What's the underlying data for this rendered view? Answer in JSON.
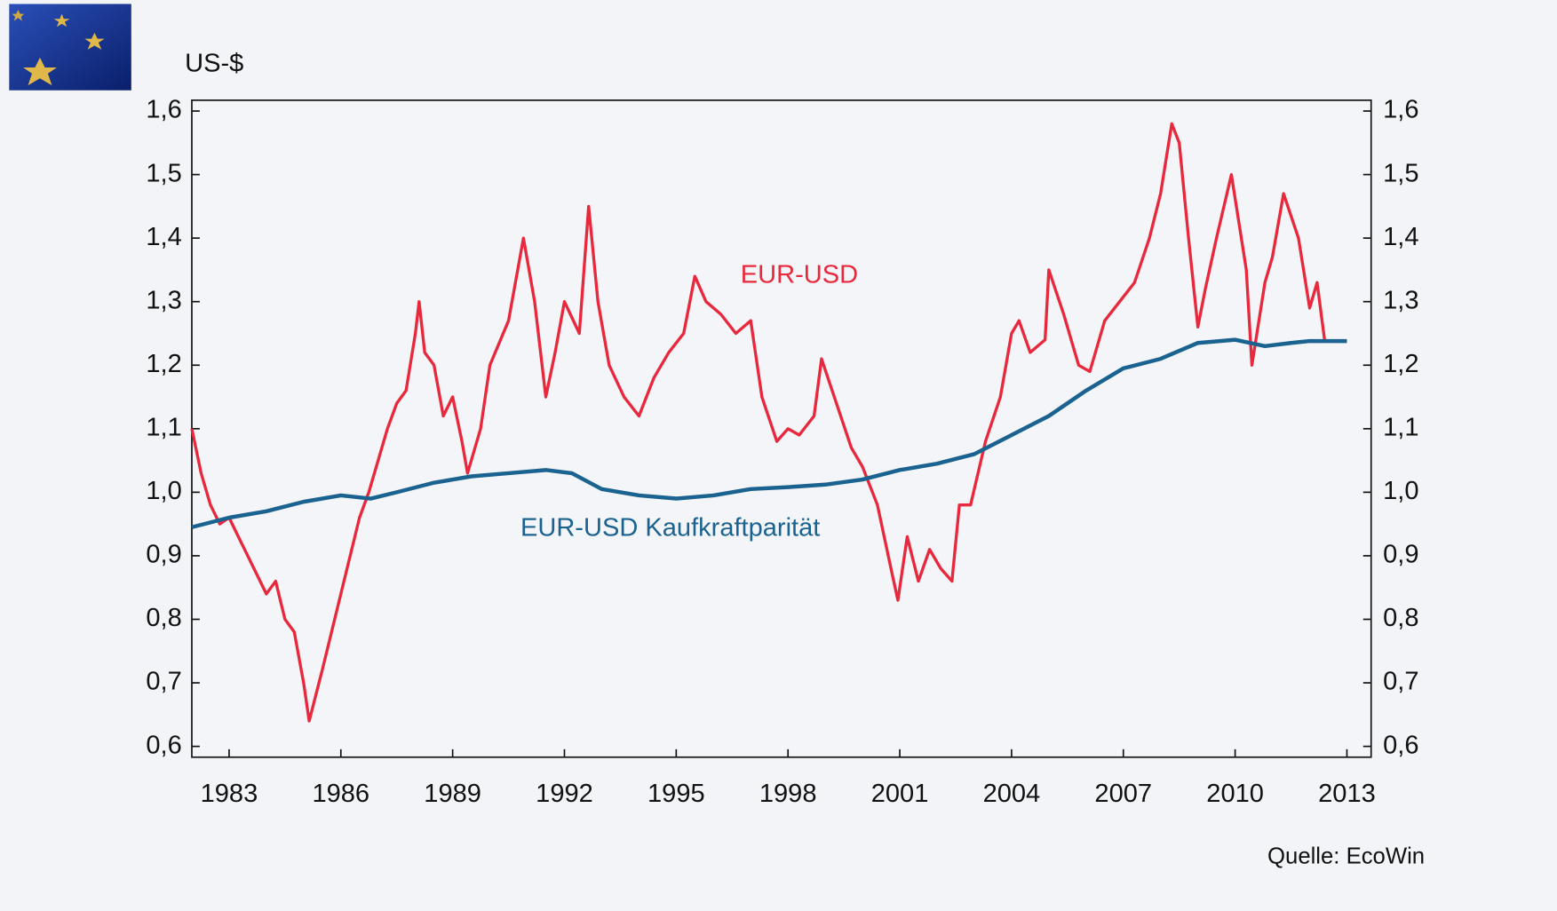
{
  "chart_data": {
    "type": "line",
    "y_label": "US-$",
    "source": "Quelle: EcoWin",
    "xlim": [
      1982,
      2013.65
    ],
    "xticks": [
      1983,
      1986,
      1989,
      1992,
      1995,
      1998,
      2001,
      2004,
      2007,
      2010,
      2013
    ],
    "ylim": [
      0.583,
      1.617
    ],
    "yticks": [
      {
        "value": 0.6,
        "label": "0,6"
      },
      {
        "value": 0.7,
        "label": "0,7"
      },
      {
        "value": 0.8,
        "label": "0,8"
      },
      {
        "value": 0.9,
        "label": "0,9"
      },
      {
        "value": 1.0,
        "label": "1,0"
      },
      {
        "value": 1.1,
        "label": "1,1"
      },
      {
        "value": 1.2,
        "label": "1,2"
      },
      {
        "value": 1.3,
        "label": "1,3"
      },
      {
        "value": 1.4,
        "label": "1,4"
      },
      {
        "value": 1.5,
        "label": "1,5"
      },
      {
        "value": 1.6,
        "label": "1,6"
      }
    ],
    "y2lim": [
      0.583,
      1.617
    ],
    "y2ticks": [
      {
        "value": 0.6,
        "label": "0,6"
      },
      {
        "value": 0.7,
        "label": "0,7"
      },
      {
        "value": 0.8,
        "label": "0,8"
      },
      {
        "value": 0.9,
        "label": "0,9"
      },
      {
        "value": 1.0,
        "label": "1,0"
      },
      {
        "value": 1.1,
        "label": "1,1"
      },
      {
        "value": 1.2,
        "label": "1,2"
      },
      {
        "value": 1.3,
        "label": "1,3"
      },
      {
        "value": 1.4,
        "label": "1,4"
      },
      {
        "value": 1.5,
        "label": "1,5"
      },
      {
        "value": 1.6,
        "label": "1,6"
      }
    ],
    "series": [
      {
        "name": "EUR-USD",
        "color": "#e8283c",
        "x": [
          1982.0,
          1982.25,
          1982.5,
          1982.75,
          1983.0,
          1983.25,
          1983.5,
          1983.75,
          1984.0,
          1984.25,
          1984.5,
          1984.75,
          1985.0,
          1985.15,
          1985.5,
          1985.75,
          1986.0,
          1986.25,
          1986.5,
          1986.75,
          1987.0,
          1987.25,
          1987.5,
          1987.75,
          1988.0,
          1988.1,
          1988.25,
          1988.5,
          1988.75,
          1989.0,
          1989.25,
          1989.4,
          1989.75,
          1990.0,
          1990.5,
          1990.9,
          1991.2,
          1991.5,
          1991.75,
          1992.0,
          1992.4,
          1992.65,
          1992.9,
          1993.2,
          1993.6,
          1994.0,
          1994.4,
          1994.8,
          1995.2,
          1995.5,
          1995.8,
          1996.2,
          1996.6,
          1997.0,
          1997.3,
          1997.7,
          1998.0,
          1998.3,
          1998.7,
          1998.9,
          1999.3,
          1999.7,
          2000.0,
          2000.4,
          2000.8,
          2000.95,
          2001.2,
          2001.5,
          2001.8,
          2002.1,
          2002.4,
          2002.6,
          2002.9,
          2003.3,
          2003.7,
          2004.0,
          2004.2,
          2004.5,
          2004.9,
          2005.0,
          2005.4,
          2005.8,
          2006.1,
          2006.5,
          2006.9,
          2007.3,
          2007.7,
          2008.0,
          2008.3,
          2008.5,
          2008.75,
          2009.0,
          2009.2,
          2009.5,
          2009.9,
          2010.3,
          2010.45,
          2010.8,
          2011.0,
          2011.3,
          2011.7,
          2012.0,
          2012.2,
          2012.4
        ],
        "values": [
          1.1,
          1.03,
          0.98,
          0.95,
          0.96,
          0.93,
          0.9,
          0.87,
          0.84,
          0.86,
          0.8,
          0.78,
          0.7,
          0.64,
          0.72,
          0.78,
          0.84,
          0.9,
          0.96,
          1.0,
          1.05,
          1.1,
          1.14,
          1.16,
          1.25,
          1.3,
          1.22,
          1.2,
          1.12,
          1.15,
          1.08,
          1.03,
          1.1,
          1.2,
          1.27,
          1.4,
          1.3,
          1.15,
          1.22,
          1.3,
          1.25,
          1.45,
          1.3,
          1.2,
          1.15,
          1.12,
          1.18,
          1.22,
          1.25,
          1.34,
          1.3,
          1.28,
          1.25,
          1.27,
          1.15,
          1.08,
          1.1,
          1.09,
          1.12,
          1.21,
          1.14,
          1.07,
          1.04,
          0.98,
          0.87,
          0.83,
          0.93,
          0.86,
          0.91,
          0.88,
          0.86,
          0.98,
          0.98,
          1.08,
          1.15,
          1.25,
          1.27,
          1.22,
          1.24,
          1.35,
          1.28,
          1.2,
          1.19,
          1.27,
          1.3,
          1.33,
          1.4,
          1.47,
          1.58,
          1.55,
          1.4,
          1.26,
          1.32,
          1.4,
          1.5,
          1.35,
          1.2,
          1.33,
          1.37,
          1.47,
          1.4,
          1.29,
          1.33,
          1.24
        ]
      },
      {
        "name": "EUR-USD Kaufkraftparität",
        "color": "#1a6391",
        "x": [
          1982,
          1983,
          1984,
          1985,
          1986,
          1986.8,
          1987.5,
          1988.5,
          1989.5,
          1990.5,
          1991.5,
          1992.2,
          1993,
          1994,
          1995,
          1996,
          1997,
          1998,
          1999,
          2000,
          2001,
          2002,
          2003,
          2004,
          2005,
          2006,
          2007,
          2008,
          2009,
          2010,
          2010.8,
          2011.5,
          2012,
          2013
        ],
        "values": [
          0.945,
          0.96,
          0.97,
          0.985,
          0.995,
          0.99,
          1.0,
          1.015,
          1.025,
          1.03,
          1.035,
          1.03,
          1.005,
          0.995,
          0.99,
          0.995,
          1.005,
          1.008,
          1.012,
          1.02,
          1.035,
          1.045,
          1.06,
          1.09,
          1.12,
          1.16,
          1.195,
          1.21,
          1.235,
          1.24,
          1.23,
          1.235,
          1.238,
          1.238
        ]
      }
    ]
  }
}
